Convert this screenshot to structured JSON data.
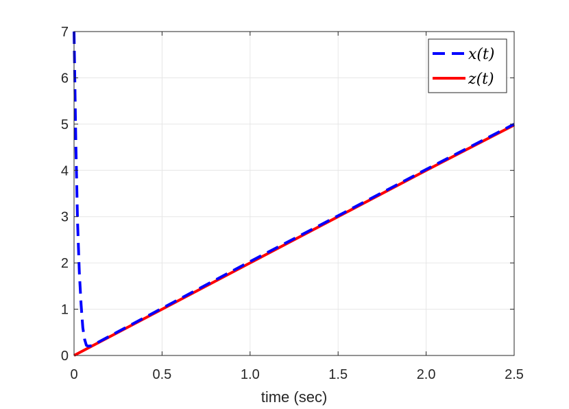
{
  "chart_data": {
    "type": "line",
    "title": "",
    "xlabel": "time (sec)",
    "ylabel": "",
    "xlim": [
      0,
      2.5
    ],
    "ylim": [
      0,
      7
    ],
    "xticks": [
      0,
      0.5,
      1.0,
      1.5,
      2.0,
      2.5
    ],
    "xtick_labels": [
      "0",
      "0.5",
      "1.0",
      "1.5",
      "2.0",
      "2.5"
    ],
    "yticks": [
      0,
      1,
      2,
      3,
      4,
      5,
      6,
      7
    ],
    "ytick_labels": [
      "0",
      "1",
      "2",
      "3",
      "4",
      "5",
      "6",
      "7"
    ],
    "grid": true,
    "legend_position": "top-right",
    "series": [
      {
        "name": "x(t)",
        "color": "#0000ff",
        "style": "dashed",
        "x": [
          0,
          0.01,
          0.02,
          0.03,
          0.04,
          0.05,
          0.06,
          0.07,
          0.08,
          0.1,
          0.5,
          1.0,
          1.5,
          2.0,
          2.5
        ],
        "y": [
          7.0,
          4.6,
          2.9,
          1.8,
          1.1,
          0.6,
          0.35,
          0.22,
          0.2,
          0.21,
          1.02,
          2.03,
          3.02,
          4.02,
          5.0
        ]
      },
      {
        "name": "z(t)",
        "color": "#ff0000",
        "style": "solid",
        "x": [
          0,
          0.5,
          1.0,
          1.5,
          2.0,
          2.5
        ],
        "y": [
          0,
          1.0,
          2.0,
          3.0,
          4.0,
          4.98
        ]
      }
    ]
  }
}
